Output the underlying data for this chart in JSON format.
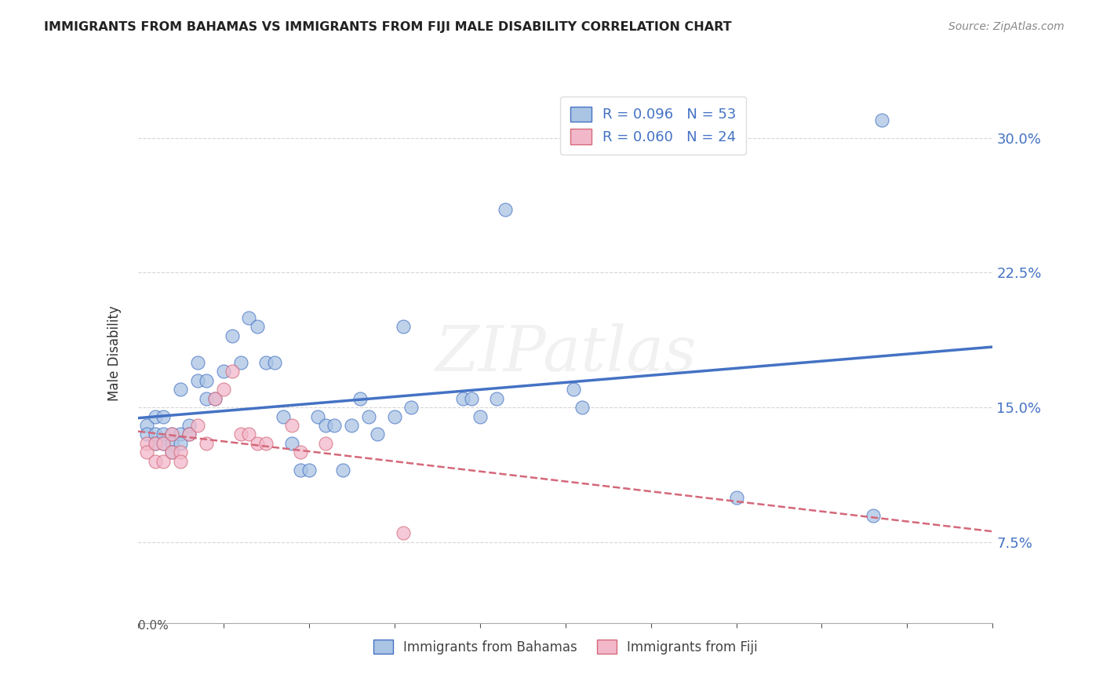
{
  "title": "IMMIGRANTS FROM BAHAMAS VS IMMIGRANTS FROM FIJI MALE DISABILITY CORRELATION CHART",
  "source": "Source: ZipAtlas.com",
  "ylabel": "Male Disability",
  "y_ticks": [
    0.075,
    0.15,
    0.225,
    0.3
  ],
  "y_tick_labels": [
    "7.5%",
    "15.0%",
    "22.5%",
    "30.0%"
  ],
  "xmin": 0.0,
  "xmax": 0.1,
  "ymin": 0.03,
  "ymax": 0.33,
  "color_bahamas": "#aac4e4",
  "color_fiji": "#f2b8ca",
  "color_line_bahamas": "#4472c4",
  "color_line_fiji": "#d4687a",
  "watermark": "ZIPatlas",
  "bahamas_x": [
    0.001,
    0.001,
    0.002,
    0.002,
    0.002,
    0.003,
    0.003,
    0.003,
    0.004,
    0.004,
    0.004,
    0.005,
    0.005,
    0.005,
    0.006,
    0.006,
    0.007,
    0.007,
    0.008,
    0.008,
    0.009,
    0.01,
    0.011,
    0.012,
    0.013,
    0.014,
    0.015,
    0.016,
    0.017,
    0.018,
    0.019,
    0.02,
    0.021,
    0.022,
    0.023,
    0.024,
    0.025,
    0.026,
    0.027,
    0.028,
    0.03,
    0.031,
    0.032,
    0.038,
    0.039,
    0.04,
    0.042,
    0.043,
    0.051,
    0.052,
    0.07,
    0.086,
    0.087
  ],
  "bahamas_y": [
    0.14,
    0.135,
    0.145,
    0.135,
    0.13,
    0.145,
    0.135,
    0.13,
    0.135,
    0.13,
    0.125,
    0.135,
    0.13,
    0.16,
    0.14,
    0.135,
    0.175,
    0.165,
    0.165,
    0.155,
    0.155,
    0.17,
    0.19,
    0.175,
    0.2,
    0.195,
    0.175,
    0.175,
    0.145,
    0.13,
    0.115,
    0.115,
    0.145,
    0.14,
    0.14,
    0.115,
    0.14,
    0.155,
    0.145,
    0.135,
    0.145,
    0.195,
    0.15,
    0.155,
    0.155,
    0.145,
    0.155,
    0.26,
    0.16,
    0.15,
    0.1,
    0.09,
    0.31
  ],
  "fiji_x": [
    0.001,
    0.001,
    0.002,
    0.002,
    0.003,
    0.003,
    0.004,
    0.004,
    0.005,
    0.005,
    0.006,
    0.007,
    0.008,
    0.009,
    0.01,
    0.011,
    0.012,
    0.013,
    0.014,
    0.015,
    0.018,
    0.019,
    0.022,
    0.031
  ],
  "fiji_y": [
    0.13,
    0.125,
    0.13,
    0.12,
    0.13,
    0.12,
    0.135,
    0.125,
    0.125,
    0.12,
    0.135,
    0.14,
    0.13,
    0.155,
    0.16,
    0.17,
    0.135,
    0.135,
    0.13,
    0.13,
    0.14,
    0.125,
    0.13,
    0.08
  ]
}
